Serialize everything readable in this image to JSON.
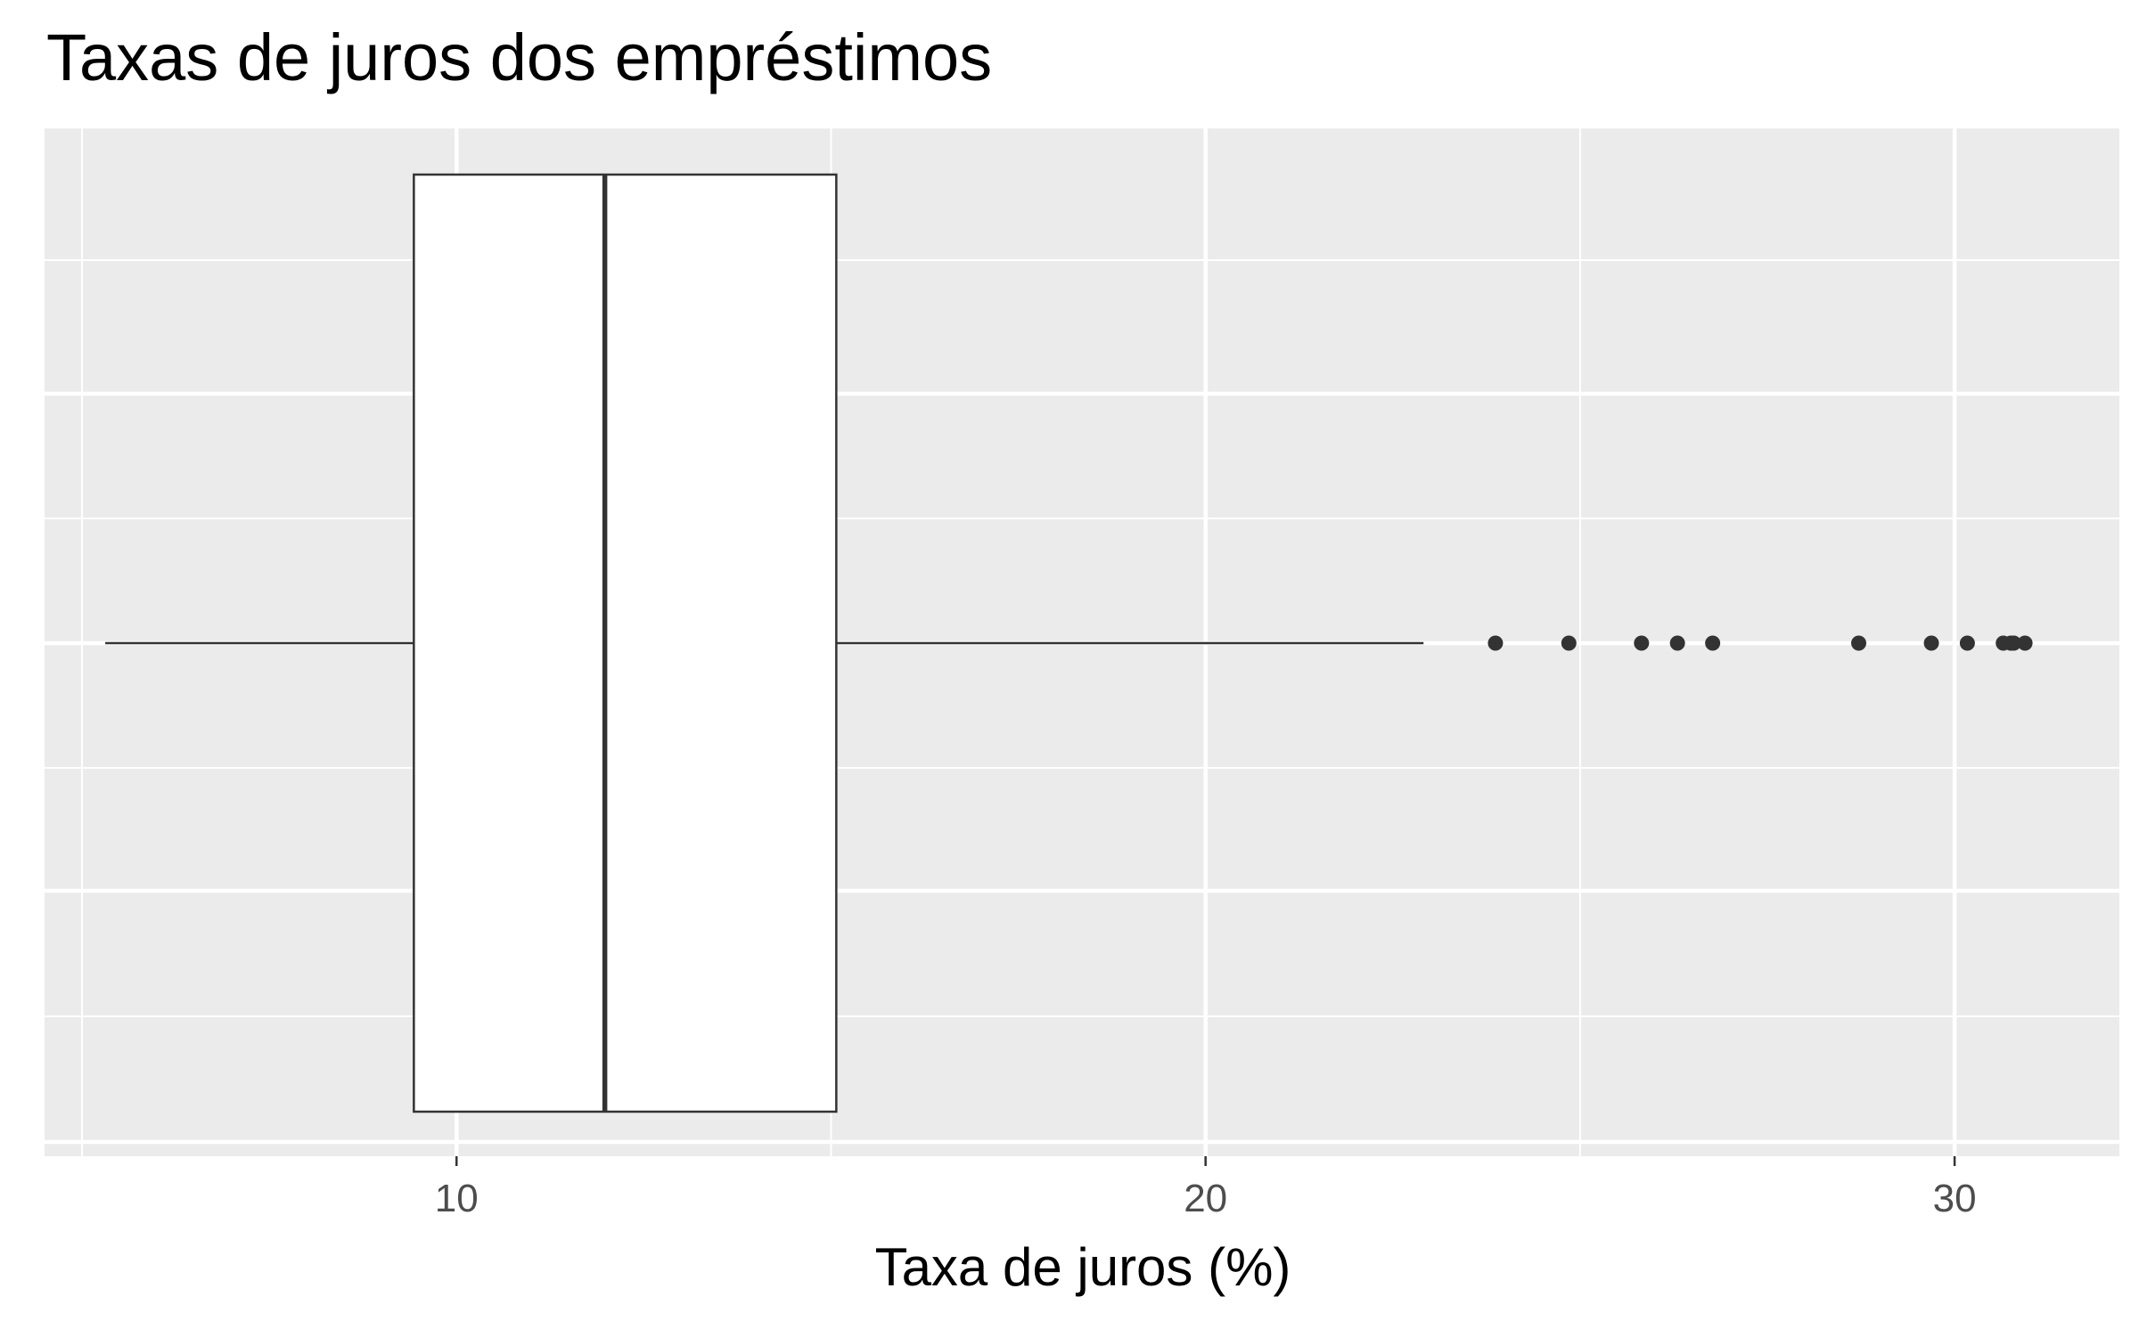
{
  "chart_data": {
    "type": "boxplot",
    "orientation": "horizontal",
    "title": "Taxas de juros dos empréstimos",
    "xlabel": "Taxa de juros (%)",
    "ylabel": "",
    "xlim": [
      4.5,
      32.2
    ],
    "x_ticks": [
      10,
      20,
      30
    ],
    "x_tick_labels": [
      "10",
      "20",
      "30"
    ],
    "grid": true,
    "box": {
      "whisker_low": 5.31,
      "q1": 9.43,
      "median": 11.98,
      "q3": 15.07,
      "whisker_high": 22.91
    },
    "outliers": [
      23.87,
      24.85,
      25.82,
      26.3,
      26.77,
      28.72,
      29.69,
      30.17,
      30.65,
      30.75,
      30.79,
      30.94
    ],
    "colors": {
      "panel_background": "#ebebeb",
      "gridline": "#ffffff",
      "box_fill": "#ffffff",
      "box_stroke": "#333333",
      "points": "#333333"
    }
  }
}
